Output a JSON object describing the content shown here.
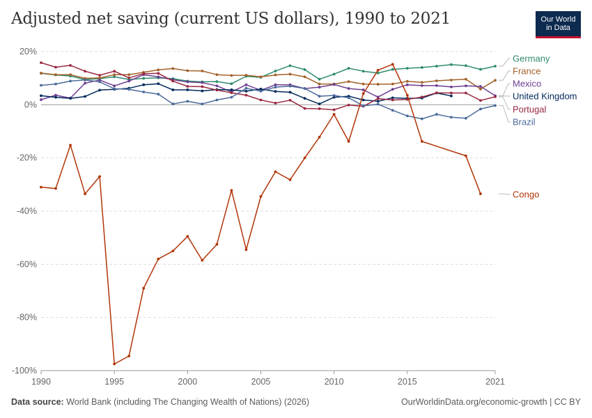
{
  "header": {
    "title": "Adjusted net saving (current US dollars), 1990 to 2021",
    "logo_line1": "Our World",
    "logo_line2": "in Data"
  },
  "footer": {
    "source_label": "Data source:",
    "source_text": "World Bank (including The Changing Wealth of Nations) (2026)",
    "url_text": "OurWorldinData.org/economic-growth | CC BY"
  },
  "chart_data": {
    "type": "line",
    "title": "Adjusted net saving (current US dollars), 1990 to 2021",
    "xlim": [
      1990,
      2021
    ],
    "ylim": [
      -100,
      20
    ],
    "x_ticks": [
      1990,
      1995,
      2000,
      2005,
      2010,
      2015,
      2021
    ],
    "y_ticks": [
      20,
      0,
      -20,
      -40,
      -60,
      -80,
      -100
    ],
    "y_tick_labels": [
      "20%",
      "0%",
      "-20%",
      "-40%",
      "-60%",
      "-80%",
      "-100%"
    ],
    "grid": true,
    "legend_placement": "right",
    "series": [
      {
        "name": "Germany",
        "color": "#2e8b6e",
        "x": [
          1990,
          1991,
          1992,
          1993,
          1994,
          1995,
          1996,
          1997,
          1998,
          1999,
          2000,
          2001,
          2002,
          2003,
          2004,
          2005,
          2006,
          2007,
          2008,
          2009,
          2010,
          2011,
          2012,
          2013,
          2014,
          2015,
          2016,
          2017,
          2018,
          2019,
          2020,
          2021
        ],
        "y": [
          11.8,
          11.2,
          10.8,
          9.5,
          9.8,
          10.5,
          9.5,
          9.9,
          10.1,
          9.8,
          8.9,
          8.6,
          8.7,
          7.9,
          10.7,
          10.3,
          12.7,
          14.7,
          13.2,
          9.6,
          11.5,
          13.7,
          12.6,
          11.9,
          13.3,
          13.7,
          14.0,
          14.5,
          15.1,
          14.7,
          13.3,
          14.5
        ]
      },
      {
        "name": "France",
        "color": "#a2622a",
        "x": [
          1990,
          1991,
          1992,
          1993,
          1994,
          1995,
          1996,
          1997,
          1998,
          1999,
          2000,
          2001,
          2002,
          2003,
          2004,
          2005,
          2006,
          2007,
          2008,
          2009,
          2010,
          2011,
          2012,
          2013,
          2014,
          2015,
          2016,
          2017,
          2018,
          2019,
          2020,
          2021
        ],
        "y": [
          11.9,
          11.3,
          11.3,
          9.9,
          10.1,
          11.3,
          11.3,
          12.2,
          13.1,
          13.6,
          12.8,
          12.7,
          11.3,
          11.0,
          11.1,
          10.5,
          11.2,
          11.5,
          10.5,
          7.8,
          7.8,
          8.7,
          7.8,
          7.7,
          7.8,
          8.8,
          8.4,
          9.0,
          9.3,
          9.6,
          5.9,
          9.2
        ]
      },
      {
        "name": "Mexico",
        "color": "#6d3e91",
        "x": [
          1990,
          1991,
          1992,
          1993,
          1994,
          1995,
          1996,
          1997,
          1998,
          1999,
          2000,
          2001,
          2002,
          2003,
          2004,
          2005,
          2006,
          2007,
          2008,
          2009,
          2010,
          2011,
          2012,
          2013,
          2014,
          2015,
          2016,
          2017,
          2018,
          2019,
          2020,
          2021
        ],
        "y": [
          1.9,
          3.6,
          2.5,
          8.1,
          9.3,
          7.1,
          8.9,
          11.3,
          10.5,
          9.4,
          8.6,
          8.3,
          7.1,
          4.8,
          7.5,
          5.4,
          7.5,
          7.5,
          6.1,
          6.6,
          7.6,
          6.1,
          5.6,
          2.9,
          5.8,
          7.5,
          7.2,
          7.2,
          6.7,
          7.1,
          6.9,
          3.4
        ]
      },
      {
        "name": "United Kingdom",
        "color": "#00295b",
        "x": [
          1990,
          1991,
          1992,
          1993,
          1994,
          1995,
          1996,
          1997,
          1998,
          1999,
          2000,
          2001,
          2002,
          2003,
          2004,
          2005,
          2006,
          2007,
          2008,
          2009,
          2010,
          2011,
          2012,
          2013,
          2014,
          2015,
          2016,
          2017,
          2018
        ],
        "y": [
          3.4,
          2.8,
          2.4,
          3.1,
          5.5,
          5.8,
          6.2,
          7.5,
          7.9,
          5.6,
          5.6,
          5.2,
          5.7,
          5.6,
          5.1,
          5.9,
          5.0,
          4.7,
          2.4,
          0.3,
          2.8,
          3.2,
          1.8,
          1.3,
          2.6,
          2.4,
          2.5,
          4.4,
          3.3
        ]
      },
      {
        "name": "Portugal",
        "color": "#9a2941",
        "x": [
          1990,
          1991,
          1992,
          1993,
          1994,
          1995,
          1996,
          1997,
          1998,
          1999,
          2000,
          2001,
          2002,
          2003,
          2004,
          2005,
          2006,
          2007,
          2008,
          2009,
          2010,
          2011,
          2012,
          2013,
          2014,
          2015,
          2016,
          2017,
          2018,
          2019,
          2020,
          2021
        ],
        "y": [
          15.8,
          14.1,
          14.8,
          12.6,
          11.1,
          12.6,
          10.1,
          11.7,
          11.8,
          8.9,
          6.9,
          6.8,
          5.5,
          4.5,
          3.6,
          1.8,
          0.6,
          1.7,
          -1.4,
          -1.5,
          -1.9,
          -0.1,
          -0.6,
          2.3,
          1.8,
          2.0,
          2.9,
          4.5,
          4.4,
          4.4,
          1.6,
          3.0
        ]
      },
      {
        "name": "Brazil",
        "color": "#4c6a9c",
        "x": [
          1990,
          1991,
          1992,
          1993,
          1994,
          1995,
          1996,
          1997,
          1998,
          1999,
          2000,
          2001,
          2002,
          2003,
          2004,
          2005,
          2006,
          2007,
          2008,
          2009,
          2010,
          2011,
          2012,
          2013,
          2014,
          2015,
          2016,
          2017,
          2018,
          2019,
          2020,
          2021
        ],
        "y": [
          7.3,
          7.8,
          8.9,
          9.3,
          8.6,
          6.0,
          5.8,
          4.8,
          4.0,
          0.3,
          1.3,
          0.3,
          1.8,
          2.8,
          6.2,
          5.1,
          6.6,
          7.0,
          6.1,
          3.2,
          3.5,
          2.6,
          -0.4,
          0.2,
          -2.1,
          -4.2,
          -5.3,
          -3.6,
          -4.7,
          -5.1,
          -1.6,
          -0.3
        ]
      },
      {
        "name": "Congo",
        "color": "#b13507",
        "x": [
          1990,
          1991,
          1992,
          1993,
          1994,
          1995,
          1996,
          1997,
          1998,
          1999,
          2000,
          2001,
          2002,
          2003,
          2004,
          2005,
          2006,
          2007,
          2008,
          2009,
          2010,
          2011,
          2012,
          2013,
          2014,
          2015,
          2016,
          2019,
          2020
        ],
        "y": [
          -31.0,
          -31.5,
          -15.2,
          -33.5,
          -27.0,
          -97.5,
          -94.5,
          -69.0,
          -58.0,
          -55.0,
          -49.5,
          -58.5,
          -52.5,
          -32.2,
          -54.5,
          -34.5,
          -25.2,
          -28.2,
          -20.0,
          -12.2,
          -3.6,
          -13.8,
          4.2,
          13.0,
          15.2,
          3.6,
          -13.8,
          -19.2,
          -33.5
        ]
      }
    ]
  }
}
